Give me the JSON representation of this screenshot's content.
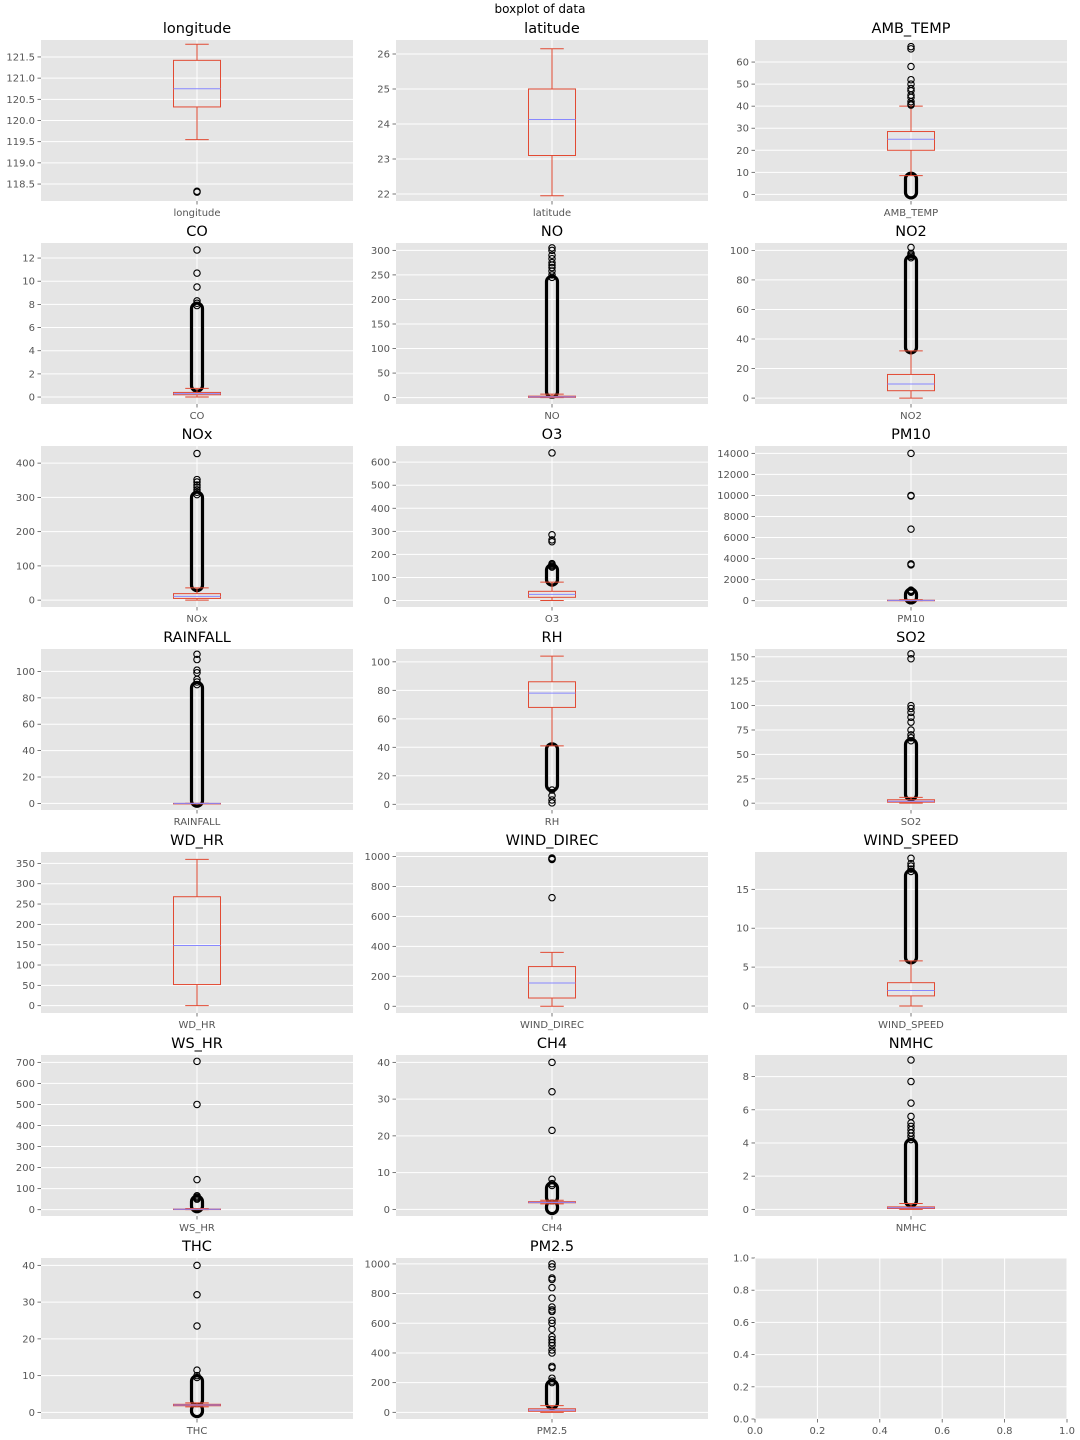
{
  "figure": {
    "suptitle": "boxplot of data",
    "style": {
      "facecolor": "#ffffff",
      "axes_bg": "#e5e5e5",
      "grid_color": "#ffffff",
      "box_color": "#e24a33",
      "median_color": "#8888ff",
      "flier_color": "#000000",
      "tick_color": "#555555"
    }
  },
  "chart_data": [
    {
      "type": "box",
      "title": "longitude",
      "category": "longitude",
      "ylim": [
        118.1,
        121.9
      ],
      "yticks": [
        118.5,
        119.0,
        119.5,
        120.0,
        120.5,
        121.0,
        121.5
      ],
      "tick_decimals": 1,
      "whislo": 119.55,
      "q1": 120.32,
      "med": 120.75,
      "q3": 121.42,
      "whishi": 121.8,
      "fliers": [
        118.31,
        118.33
      ]
    },
    {
      "type": "box",
      "title": "latitude",
      "category": "latitude",
      "ylim": [
        21.8,
        26.4
      ],
      "yticks": [
        22,
        23,
        24,
        25,
        26
      ],
      "tick_decimals": 0,
      "whislo": 21.95,
      "q1": 23.1,
      "med": 24.13,
      "q3": 25.0,
      "whishi": 26.15,
      "fliers": []
    },
    {
      "type": "box",
      "title": "AMB_TEMP",
      "category": "AMB_TEMP",
      "ylim": [
        -3,
        70
      ],
      "yticks": [
        0,
        10,
        20,
        30,
        40,
        50,
        60
      ],
      "tick_decimals": 0,
      "whislo": 8.5,
      "q1": 20.0,
      "med": 25.0,
      "q3": 28.5,
      "whishi": 40.0,
      "fliers": [
        67,
        66,
        58,
        52,
        50,
        48,
        47,
        45,
        44,
        42,
        41,
        40.5
      ],
      "flier_bands": [
        [
          0,
          8
        ]
      ]
    },
    {
      "type": "box",
      "title": "CO",
      "category": "CO",
      "ylim": [
        -0.6,
        13.3
      ],
      "yticks": [
        0,
        2,
        4,
        6,
        8,
        10,
        12
      ],
      "tick_decimals": 0,
      "whislo": 0.0,
      "q1": 0.2,
      "med": 0.3,
      "q3": 0.4,
      "whishi": 0.75,
      "fliers": [
        12.7,
        10.7,
        9.5,
        8.3,
        8.1,
        7.9
      ],
      "flier_bands": [
        [
          0.8,
          7.8
        ]
      ]
    },
    {
      "type": "box",
      "title": "NO",
      "category": "NO",
      "ylim": [
        -13,
        315
      ],
      "yticks": [
        0,
        50,
        100,
        150,
        200,
        250,
        300
      ],
      "tick_decimals": 0,
      "whislo": 0.0,
      "q1": 0.5,
      "med": 1.5,
      "q3": 3.0,
      "whishi": 7.0,
      "fliers": [
        305,
        300,
        290,
        283,
        275,
        270,
        265,
        258,
        250,
        245
      ],
      "flier_bands": [
        [
          8,
          240
        ]
      ]
    },
    {
      "type": "box",
      "title": "NO2",
      "category": "NO2",
      "ylim": [
        -4,
        105
      ],
      "yticks": [
        0,
        20,
        40,
        60,
        80,
        100
      ],
      "tick_decimals": 0,
      "whislo": 0.0,
      "q1": 5.0,
      "med": 9.5,
      "q3": 16.0,
      "whishi": 32.0,
      "fliers": [
        102,
        98,
        97,
        96,
        95
      ],
      "flier_bands": [
        [
          33,
          94
        ]
      ]
    },
    {
      "type": "box",
      "title": "NOx",
      "category": "NOx",
      "ylim": [
        -20,
        450
      ],
      "yticks": [
        0,
        100,
        200,
        300,
        400
      ],
      "tick_decimals": 0,
      "whislo": 0.0,
      "q1": 5.0,
      "med": 11.0,
      "q3": 19.0,
      "whishi": 36.0,
      "fliers": [
        428,
        352,
        345,
        336,
        330,
        322,
        315,
        308
      ],
      "flier_bands": [
        [
          38,
          305
        ]
      ]
    },
    {
      "type": "box",
      "title": "O3",
      "category": "O3",
      "ylim": [
        -28,
        670
      ],
      "yticks": [
        0,
        100,
        200,
        300,
        400,
        500,
        600
      ],
      "tick_decimals": 0,
      "whislo": 0.0,
      "q1": 14.0,
      "med": 27.0,
      "q3": 40.0,
      "whishi": 80.0,
      "fliers": [
        640,
        285,
        263,
        255,
        160,
        155,
        150,
        145
      ],
      "flier_bands": [
        [
          82,
          140
        ]
      ]
    },
    {
      "type": "box",
      "title": "PM10",
      "category": "PM10",
      "ylim": [
        -600,
        14700
      ],
      "yticks": [
        0,
        2000,
        4000,
        6000,
        8000,
        10000,
        12000,
        14000
      ],
      "tick_decimals": 0,
      "whislo": 0.0,
      "q1": 10.0,
      "med": 25.0,
      "q3": 45.0,
      "whishi": 100.0,
      "fliers": [
        14000,
        10000,
        9950,
        6800,
        3500,
        3400,
        1000,
        950,
        900,
        850,
        800
      ],
      "flier_bands": [
        [
          120,
          780
        ]
      ]
    },
    {
      "type": "box",
      "title": "RAINFALL",
      "category": "RAINFALL",
      "ylim": [
        -5,
        117
      ],
      "yticks": [
        0,
        20,
        40,
        60,
        80,
        100
      ],
      "tick_decimals": 0,
      "whislo": 0.0,
      "q1": 0.0,
      "med": 0.0,
      "q3": 0.0,
      "whishi": 0.0,
      "fliers": [
        113,
        109,
        101,
        99,
        94,
        92,
        90
      ],
      "flier_bands": [
        [
          0.5,
          89
        ]
      ]
    },
    {
      "type": "box",
      "title": "RH",
      "category": "RH",
      "ylim": [
        -4,
        109
      ],
      "yticks": [
        0,
        20,
        40,
        60,
        80,
        100
      ],
      "tick_decimals": 0,
      "whislo": 41.0,
      "q1": 68.0,
      "med": 78.0,
      "q3": 86.0,
      "whishi": 104.0,
      "fliers": [
        10,
        6,
        3,
        1
      ],
      "flier_bands": [
        [
          12,
          40
        ]
      ]
    },
    {
      "type": "box",
      "title": "SO2",
      "category": "SO2",
      "ylim": [
        -7,
        158
      ],
      "yticks": [
        0,
        25,
        50,
        75,
        100,
        125,
        150
      ],
      "tick_decimals": 0,
      "whislo": 0.0,
      "q1": 1.0,
      "med": 2.0,
      "q3": 3.5,
      "whishi": 6.0,
      "fliers": [
        153,
        148,
        100,
        97,
        93,
        88,
        83,
        75,
        70,
        67,
        64
      ],
      "flier_bands": [
        [
          7,
          62
        ]
      ]
    },
    {
      "type": "box",
      "title": "WD_HR",
      "category": "WD_HR",
      "ylim": [
        -18,
        378
      ],
      "yticks": [
        0,
        50,
        100,
        150,
        200,
        250,
        300,
        350
      ],
      "tick_decimals": 0,
      "whislo": 0.0,
      "q1": 52.0,
      "med": 148.0,
      "q3": 268.0,
      "whishi": 360.0,
      "fliers": []
    },
    {
      "type": "box",
      "title": "WIND_DIREC",
      "category": "WIND_DIREC",
      "ylim": [
        -45,
        1030
      ],
      "yticks": [
        0,
        200,
        400,
        600,
        800,
        1000
      ],
      "tick_decimals": 0,
      "whislo": 0.0,
      "q1": 55.0,
      "med": 155.0,
      "q3": 265.0,
      "whishi": 360.0,
      "fliers": [
        990,
        985,
        982,
        980,
        725
      ]
    },
    {
      "type": "box",
      "title": "WIND_SPEED",
      "category": "WIND_SPEED",
      "ylim": [
        -0.9,
        19.8
      ],
      "yticks": [
        0,
        5,
        10,
        15
      ],
      "tick_decimals": 0,
      "whislo": 0.0,
      "q1": 1.3,
      "med": 2.0,
      "q3": 3.0,
      "whishi": 5.8,
      "fliers": [
        19.0,
        18.3,
        18.0,
        17.6,
        17.3
      ],
      "flier_bands": [
        [
          6.0,
          17.0
        ]
      ]
    },
    {
      "type": "box",
      "title": "WS_HR",
      "category": "WS_HR",
      "ylim": [
        -30,
        735
      ],
      "yticks": [
        0,
        100,
        200,
        300,
        400,
        500,
        600,
        700
      ],
      "tick_decimals": 0,
      "whislo": 0.0,
      "q1": 1.0,
      "med": 2.0,
      "q3": 3.0,
      "whishi": 5.5,
      "fliers": [
        705,
        500,
        143,
        66,
        60,
        55,
        50
      ],
      "flier_bands": [
        [
          7,
          48
        ]
      ]
    },
    {
      "type": "box",
      "title": "CH4",
      "category": "CH4",
      "ylim": [
        -1.8,
        42
      ],
      "yticks": [
        0,
        10,
        20,
        30,
        40
      ],
      "tick_decimals": 0,
      "whislo": 1.5,
      "q1": 1.8,
      "med": 1.9,
      "q3": 2.1,
      "whishi": 2.5,
      "fliers": [
        40,
        32,
        21.5,
        8.2,
        7.0,
        6.5
      ],
      "flier_bands": [
        [
          2.7,
          6.3
        ],
        [
          -0.2,
          1.3
        ]
      ]
    },
    {
      "type": "box",
      "title": "NMHC",
      "category": "NMHC",
      "ylim": [
        -0.4,
        9.3
      ],
      "yticks": [
        0,
        2,
        4,
        6,
        8
      ],
      "tick_decimals": 0,
      "whislo": 0.0,
      "q1": 0.05,
      "med": 0.1,
      "q3": 0.15,
      "whishi": 0.35,
      "fliers": [
        9.0,
        7.7,
        6.4,
        5.6,
        5.2,
        5.0,
        4.8,
        4.6,
        4.4,
        4.2
      ],
      "flier_bands": [
        [
          0.4,
          4.0
        ]
      ]
    },
    {
      "type": "box",
      "title": "THC",
      "category": "THC",
      "ylim": [
        -1.8,
        42
      ],
      "yticks": [
        0,
        10,
        20,
        30,
        40
      ],
      "tick_decimals": 0,
      "whislo": 1.5,
      "q1": 1.8,
      "med": 2.0,
      "q3": 2.2,
      "whishi": 2.6,
      "fliers": [
        40,
        32,
        23.5,
        11.5,
        10.0,
        9.5
      ],
      "flier_bands": [
        [
          2.8,
          9.0
        ],
        [
          -0.2,
          1.3
        ]
      ]
    },
    {
      "type": "box",
      "title": "PM2.5",
      "category": "PM2.5",
      "ylim": [
        -45,
        1040
      ],
      "yticks": [
        0,
        200,
        400,
        600,
        800,
        1000
      ],
      "tick_decimals": 0,
      "whislo": 0.0,
      "q1": 7.0,
      "med": 15.0,
      "q3": 24.0,
      "whishi": 45.0,
      "fliers": [
        1000,
        980,
        905,
        895,
        840,
        770,
        710,
        690,
        680,
        620,
        600,
        560,
        510,
        490,
        470,
        450,
        420,
        400,
        310,
        300,
        230,
        210,
        200
      ],
      "flier_bands": [
        [
          50,
          190
        ]
      ]
    },
    {
      "type": "empty",
      "title": "",
      "category": "",
      "xlim": [
        0,
        1
      ],
      "ylim": [
        0,
        1
      ],
      "xticks": [
        0.0,
        0.2,
        0.4,
        0.6,
        0.8,
        1.0
      ],
      "yticks": [
        0.0,
        0.2,
        0.4,
        0.6,
        0.8,
        1.0
      ],
      "tick_decimals": 1
    }
  ]
}
